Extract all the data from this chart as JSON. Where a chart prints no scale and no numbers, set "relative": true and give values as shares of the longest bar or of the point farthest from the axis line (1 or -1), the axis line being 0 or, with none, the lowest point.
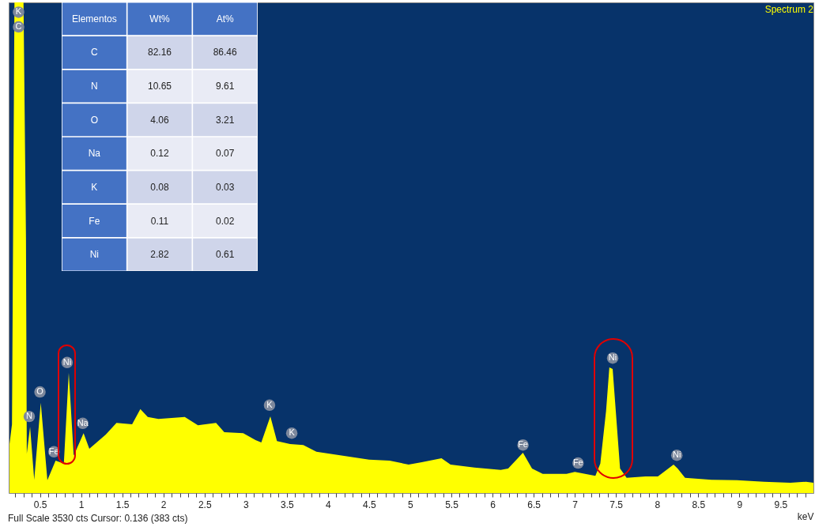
{
  "chart_data": [
    {
      "type": "area",
      "title": "Spectrum 2",
      "xlabel": "keV",
      "relative": true,
      "color": "#ffff00",
      "x": [
        0.13,
        0.16,
        0.19,
        0.3,
        0.33,
        0.34,
        0.38,
        0.43,
        0.51,
        0.59,
        0.69,
        0.79,
        0.85,
        0.91,
        1.03,
        1.1,
        1.3,
        1.43,
        1.62,
        1.72,
        1.81,
        1.94,
        2.26,
        2.42,
        2.64,
        2.74,
        2.97,
        3.12,
        3.19,
        3.3,
        3.38,
        3.54,
        3.7,
        3.86,
        4.18,
        4.5,
        4.75,
        4.98,
        5.14,
        5.38,
        5.49,
        5.78,
        6.1,
        6.19,
        6.37,
        6.48,
        6.61,
        6.9,
        7.0,
        7.25,
        7.31,
        7.38,
        7.42,
        7.46,
        7.51,
        7.55,
        7.63,
        7.86,
        8.01,
        8.2,
        8.25,
        8.34,
        8.66,
        8.97,
        9.3,
        9.62,
        9.81,
        9.9
      ],
      "values": [
        0.1,
        0.14,
        1,
        1,
        0.52,
        0.08,
        0.135,
        0.027,
        0.184,
        0.026,
        0.066,
        0.06,
        0.245,
        0.076,
        0.122,
        0.09,
        0.119,
        0.143,
        0.14,
        0.171,
        0.155,
        0.151,
        0.155,
        0.138,
        0.143,
        0.124,
        0.122,
        0.108,
        0.103,
        0.156,
        0.106,
        0.1,
        0.098,
        0.084,
        0.076,
        0.068,
        0.066,
        0.058,
        0.063,
        0.071,
        0.058,
        0.052,
        0.047,
        0.05,
        0.082,
        0.05,
        0.039,
        0.039,
        0.043,
        0.035,
        0.06,
        0.167,
        0.256,
        0.253,
        0.14,
        0.05,
        0.031,
        0.034,
        0.034,
        0.058,
        0.05,
        0.031,
        0.027,
        0.026,
        0.023,
        0.021,
        0.023,
        0.021
      ],
      "xlim": [
        0.12,
        9.9
      ],
      "xticks": [
        {
          "value": 0.2,
          "label": null
        },
        {
          "value": 0.3,
          "label": null
        },
        {
          "value": 0.4,
          "label": null
        },
        0.5,
        {
          "value": 0.6,
          "label": null
        },
        {
          "value": 0.7,
          "label": null
        },
        {
          "value": 0.8,
          "label": null
        },
        {
          "value": 0.9,
          "label": null
        },
        1,
        {
          "value": 1.1,
          "label": null
        },
        {
          "value": 1.2,
          "label": null
        },
        {
          "value": 1.3,
          "label": null
        },
        {
          "value": 1.4,
          "label": null
        },
        1.5,
        {
          "value": 1.6,
          "label": null
        },
        {
          "value": 1.7,
          "label": null
        },
        {
          "value": 1.8,
          "label": null
        },
        {
          "value": 1.9,
          "label": null
        },
        2,
        {
          "value": 2.1,
          "label": null
        },
        {
          "value": 2.2,
          "label": null
        },
        {
          "value": 2.3,
          "label": null
        },
        {
          "value": 2.4,
          "label": null
        },
        2.5,
        {
          "value": 2.6,
          "label": null
        },
        {
          "value": 2.7,
          "label": null
        },
        {
          "value": 2.8,
          "label": null
        },
        {
          "value": 2.9,
          "label": null
        },
        3,
        {
          "value": 3.1,
          "label": null
        },
        {
          "value": 3.2,
          "label": null
        },
        {
          "value": 3.3,
          "label": null
        },
        {
          "value": 3.4,
          "label": null
        },
        3.5,
        {
          "value": 3.6,
          "label": null
        },
        {
          "value": 3.7,
          "label": null
        },
        {
          "value": 3.8,
          "label": null
        },
        {
          "value": 3.9,
          "label": null
        },
        4,
        {
          "value": 4.1,
          "label": null
        },
        {
          "value": 4.2,
          "label": null
        },
        {
          "value": 4.3,
          "label": null
        },
        {
          "value": 4.4,
          "label": null
        },
        4.5,
        {
          "value": 4.6,
          "label": null
        },
        {
          "value": 4.7,
          "label": null
        },
        {
          "value": 4.8,
          "label": null
        },
        {
          "value": 4.9,
          "label": null
        },
        5,
        {
          "value": 5.1,
          "label": null
        },
        {
          "value": 5.2,
          "label": null
        },
        {
          "value": 5.3,
          "label": null
        },
        {
          "value": 5.4,
          "label": null
        },
        5.5,
        {
          "value": 5.6,
          "label": null
        },
        {
          "value": 5.7,
          "label": null
        },
        {
          "value": 5.8,
          "label": null
        },
        {
          "value": 5.9,
          "label": null
        },
        6,
        {
          "value": 6.1,
          "label": null
        },
        {
          "value": 6.2,
          "label": null
        },
        {
          "value": 6.3,
          "label": null
        },
        {
          "value": 6.4,
          "label": null
        },
        6.5,
        {
          "value": 6.6,
          "label": null
        },
        {
          "value": 6.7,
          "label": null
        },
        {
          "value": 6.8,
          "label": null
        },
        {
          "value": 6.9,
          "label": null
        },
        7,
        {
          "value": 7.1,
          "label": null
        },
        {
          "value": 7.2,
          "label": null
        },
        {
          "value": 7.3,
          "label": null
        },
        {
          "value": 7.4,
          "label": null
        },
        7.5,
        {
          "value": 7.6,
          "label": null
        },
        {
          "value": 7.7,
          "label": null
        },
        {
          "value": 7.8,
          "label": null
        },
        {
          "value": 7.9,
          "label": null
        },
        8,
        {
          "value": 8.1,
          "label": null
        },
        {
          "value": 8.2,
          "label": null
        },
        {
          "value": 8.3,
          "label": null
        },
        {
          "value": 8.4,
          "label": null
        },
        8.5,
        {
          "value": 8.6,
          "label": null
        },
        {
          "value": 8.7,
          "label": null
        },
        {
          "value": 8.8,
          "label": null
        },
        {
          "value": 8.9,
          "label": null
        },
        9,
        {
          "value": 9.1,
          "label": null
        },
        {
          "value": 9.2,
          "label": null
        },
        {
          "value": 9.3,
          "label": null
        },
        {
          "value": 9.4,
          "label": null
        },
        9.5,
        {
          "value": 9.6,
          "label": null
        },
        {
          "value": 9.7,
          "label": null
        },
        {
          "value": 9.8,
          "label": null
        }
      ],
      "annotations": [
        {
          "text": "K",
          "x": 0.24,
          "y": 0.98
        },
        {
          "text": "C",
          "x": 0.24,
          "y": 0.95
        },
        {
          "text": "N",
          "x": 0.37,
          "y": 0.156
        },
        {
          "text": "O",
          "x": 0.5,
          "y": 0.206
        },
        {
          "text": "Fe",
          "x": 0.67,
          "y": 0.084
        },
        {
          "text": "Ni",
          "x": 0.83,
          "y": 0.266
        },
        {
          "text": "Na",
          "x": 1.02,
          "y": 0.142
        },
        {
          "text": "K",
          "x": 3.29,
          "y": 0.179
        },
        {
          "text": "K",
          "x": 3.56,
          "y": 0.122
        },
        {
          "text": "Fe",
          "x": 6.37,
          "y": 0.098
        },
        {
          "text": "Fe",
          "x": 7.04,
          "y": 0.061
        },
        {
          "text": "Ni",
          "x": 7.46,
          "y": 0.275
        },
        {
          "text": "Ni",
          "x": 8.24,
          "y": 0.077
        },
        "Full Scale 3530 cts Cursor: 0.136  (383 cts)"
      ]
    },
    {
      "type": "heatmap",
      "ylabel": "Elementos",
      "data_labels": true,
      "categories": [
        "Wt%",
        "At%"
      ],
      "y_categories": [
        "C",
        "N",
        "O",
        "Na",
        "K",
        "Fe",
        "Ni"
      ],
      "cells": [
        [
          82.16,
          86.46
        ],
        [
          10.65,
          9.61
        ],
        [
          4.06,
          3.21
        ],
        [
          0.12,
          0.07
        ],
        [
          0.08,
          0.03
        ],
        [
          0.11,
          0.02
        ],
        [
          2.82,
          0.61
        ]
      ]
    }
  ]
}
